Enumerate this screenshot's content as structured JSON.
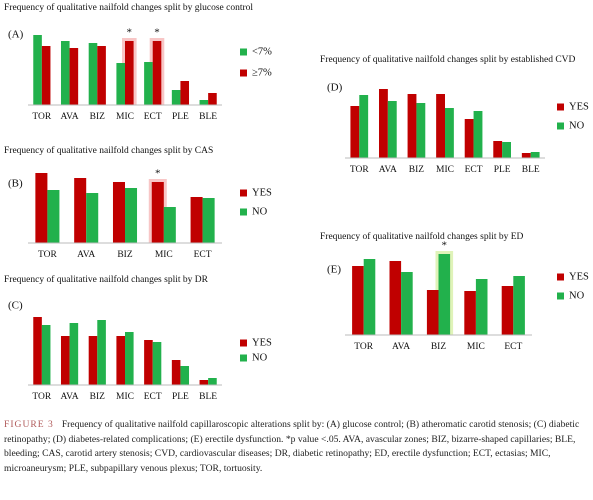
{
  "chart_data": [
    {
      "type": "bar",
      "title": "Frequency of qualitative nailfold changes split by glucose control",
      "panel": "(A)",
      "categories": [
        "TOR",
        "AVA",
        "BIZ",
        "MIC",
        "ECT",
        "PLE",
        "BLE"
      ],
      "series": [
        {
          "name": "<7%",
          "color": "#22b14c",
          "values": [
            70,
            64,
            62,
            42,
            43,
            15,
            5
          ]
        },
        {
          "name": "≥7%",
          "color": "#c00000",
          "values": [
            59,
            57,
            59,
            64,
            64,
            24,
            12
          ]
        }
      ],
      "ylim": [
        0,
        80
      ],
      "annotations": [
        {
          "text": "*",
          "category": "MIC",
          "series": "≥7%"
        },
        {
          "text": "*",
          "category": "ECT",
          "series": "≥7%"
        }
      ]
    },
    {
      "type": "bar",
      "title": "Frequency of qualitative nailfold changes split by CAS",
      "panel": "(B)",
      "categories": [
        "TOR",
        "AVA",
        "BIZ",
        "MIC",
        "ECT"
      ],
      "series": [
        {
          "name": "YES",
          "color": "#c00000",
          "values": [
            70,
            65,
            61,
            61,
            46
          ]
        },
        {
          "name": "NO",
          "color": "#22b14c",
          "values": [
            53,
            50,
            55,
            36,
            45
          ]
        }
      ],
      "ylim": [
        0,
        80
      ],
      "annotations": [
        {
          "text": "*",
          "category": "MIC",
          "series": "YES"
        }
      ]
    },
    {
      "type": "bar",
      "title": "Frequency of qualitative nailfold changes split by DR",
      "panel": "(C)",
      "categories": [
        "TOR",
        "AVA",
        "BIZ",
        "MIC",
        "ECT",
        "PLE",
        "BLE"
      ],
      "series": [
        {
          "name": "YES",
          "color": "#c00000",
          "values": [
            68,
            49,
            49,
            49,
            45,
            25,
            5
          ]
        },
        {
          "name": "NO",
          "color": "#22b14c",
          "values": [
            60,
            62,
            65,
            53,
            43,
            19,
            7
          ]
        }
      ],
      "ylim": [
        0,
        80
      ]
    },
    {
      "type": "bar",
      "title": "Frequency of qualitative nailfold changes split by established CVD",
      "panel": "(D)",
      "categories": [
        "TOR",
        "AVA",
        "BIZ",
        "MIC",
        "ECT",
        "PLE",
        "BLE"
      ],
      "series": [
        {
          "name": "YES",
          "color": "#c00000",
          "values": [
            52,
            69,
            64,
            64,
            39,
            17,
            5
          ]
        },
        {
          "name": "NO",
          "color": "#22b14c",
          "values": [
            63,
            57,
            55,
            50,
            47,
            16,
            6
          ]
        }
      ],
      "ylim": [
        0,
        80
      ]
    },
    {
      "type": "bar",
      "title": "Frequency of qualitative nailfold changes split by ED",
      "panel": "(E)",
      "categories": [
        "TOR",
        "AVA",
        "BIZ",
        "MIC",
        "ECT"
      ],
      "series": [
        {
          "name": "YES",
          "color": "#c00000",
          "values": [
            69,
            74,
            45,
            44,
            49
          ]
        },
        {
          "name": "NO",
          "color": "#22b14c",
          "values": [
            76,
            63,
            81,
            56,
            59
          ]
        }
      ],
      "ylim": [
        0,
        80
      ],
      "annotations": [
        {
          "text": "*",
          "category": "BIZ",
          "series": "NO"
        }
      ]
    }
  ],
  "caption": {
    "label": "FIGURE 3",
    "text": "Frequency of qualitative nailfold capillaroscopic alterations split by: (A) glucose control; (B) atheromatic carotid stenosis; (C) diabetic retinopathy; (D) diabetes-related complications; (E) erectile dysfunction. *p value <.05. AVA, avascular zones; BIZ, bizarre-shaped capillaries; BLE, bleeding; CAS, carotid artery stenosis; CVD, cardiovascular diseases; DR, diabetic retinopathy; ED, erectile dysfunction; ECT, ectasias; MIC, microaneurysm; PLE, subpapillary venous plexus; TOR, tortuosity."
  }
}
